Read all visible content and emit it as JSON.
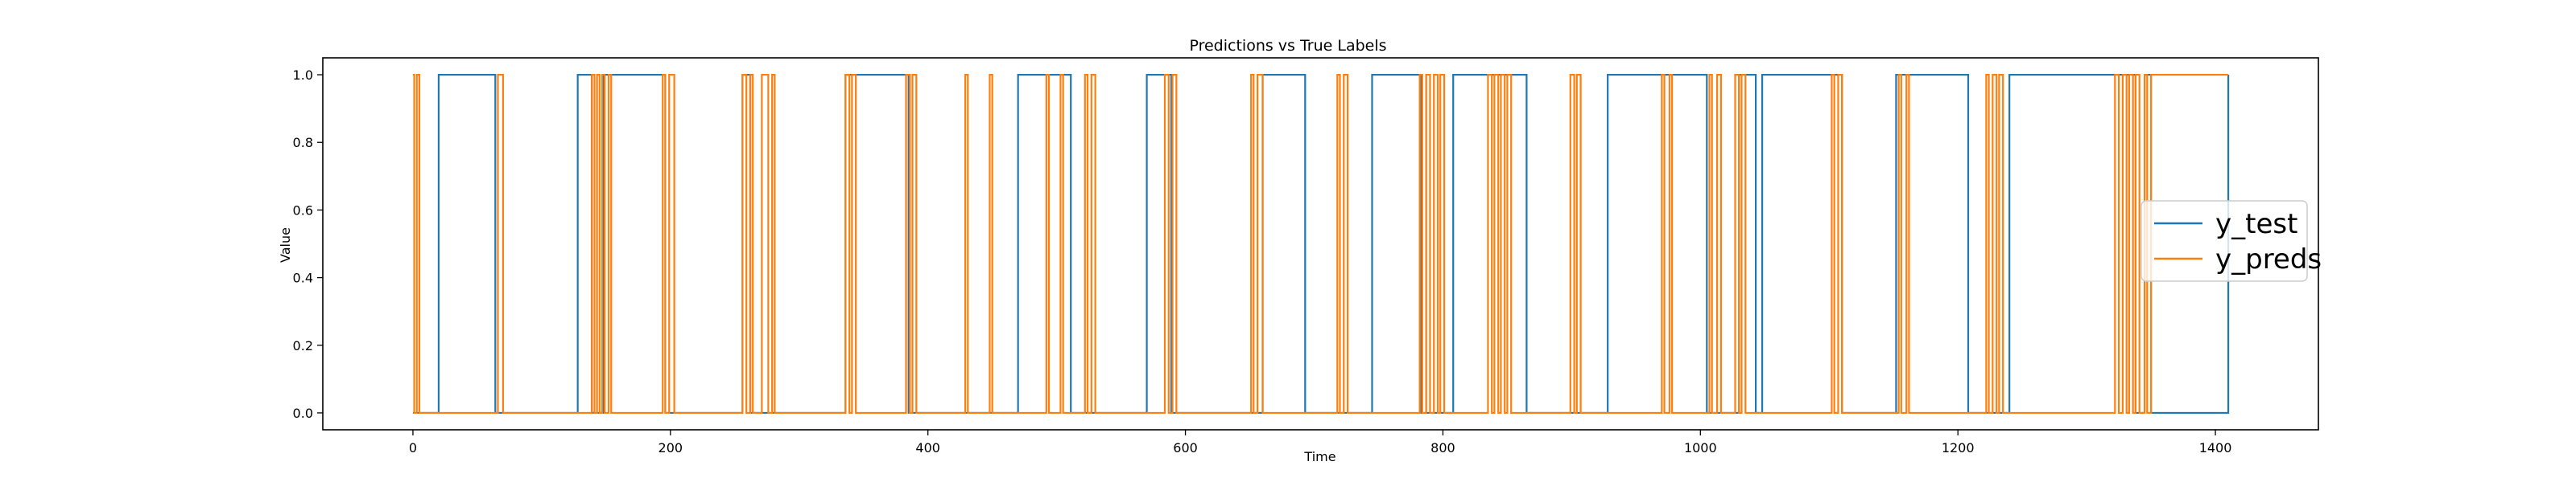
{
  "chart_data": {
    "type": "line",
    "title": "Predictions vs True Labels",
    "xlabel": "Time",
    "ylabel": "Value",
    "xlim": [
      -70,
      1480
    ],
    "ylim": [
      -0.05,
      1.05
    ],
    "xticks": [
      0,
      200,
      400,
      600,
      800,
      1000,
      1200,
      1400
    ],
    "yticks": [
      0.0,
      0.2,
      0.4,
      0.6,
      0.8,
      1.0
    ],
    "x_end": 1410,
    "grid": false,
    "legend_position": "center-right",
    "series": [
      {
        "name": "y_test",
        "color": "#1f77b4",
        "initial": 0,
        "toggles": [
          20,
          64,
          128,
          139,
          148,
          196,
          256,
          262,
          336,
          385,
          470,
          511,
          570,
          589,
          660,
          693,
          745,
          783,
          808,
          865,
          928,
          1005,
          1030,
          1043,
          1048,
          1110,
          1152,
          1208,
          1240,
          1338,
          1345,
          1350,
          1410
        ]
      },
      {
        "name": "y_preds",
        "color": "#ff7f0e",
        "initial": 1,
        "toggles": [
          1,
          3,
          5,
          66,
          70,
          139,
          141,
          143,
          145,
          147,
          149,
          152,
          154,
          194,
          196,
          199,
          203,
          256,
          259,
          262,
          264,
          271,
          276,
          279,
          281,
          336,
          339,
          341,
          344,
          383,
          386,
          388,
          391,
          429,
          431,
          448,
          450,
          492,
          494,
          503,
          505,
          522,
          524,
          527,
          530,
          584,
          587,
          590,
          593,
          651,
          653,
          656,
          660,
          718,
          720,
          723,
          726,
          782,
          784,
          787,
          790,
          793,
          796,
          798,
          801,
          835,
          838,
          840,
          843,
          845,
          848,
          850,
          853,
          899,
          902,
          904,
          907,
          970,
          972,
          976,
          978,
          1007,
          1009,
          1013,
          1016,
          1027,
          1030,
          1032,
          1035,
          1102,
          1104,
          1107,
          1110,
          1154,
          1156,
          1160,
          1162,
          1222,
          1224,
          1227,
          1230,
          1232,
          1235,
          1322,
          1325,
          1328,
          1331,
          1333,
          1336,
          1338,
          1341,
          1345,
          1347,
          1350
        ]
      }
    ]
  }
}
